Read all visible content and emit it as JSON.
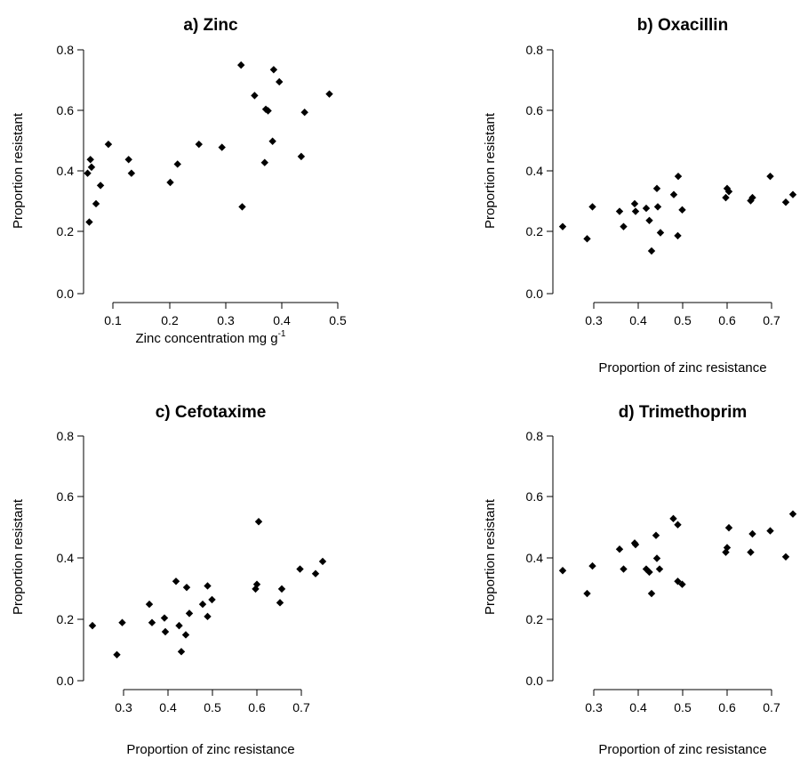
{
  "chart_data": [
    {
      "type": "scatter",
      "title": "a) Zinc",
      "xlabel": "Zinc concentration mg g",
      "xlabel_superscript": "-1",
      "ylabel": "Proportion resistant",
      "xlim": [
        0.05,
        0.5
      ],
      "ylim": [
        0.0,
        0.8
      ],
      "xticks": [
        "0.1",
        "0.2",
        "0.3",
        "0.4",
        "0.5"
      ],
      "yticks": [
        "0.0",
        "0.2",
        "0.4",
        "0.6",
        "0.8"
      ],
      "grid": false,
      "points": [
        {
          "x": 0.055,
          "y": 0.395
        },
        {
          "x": 0.058,
          "y": 0.235
        },
        {
          "x": 0.06,
          "y": 0.44
        },
        {
          "x": 0.062,
          "y": 0.415
        },
        {
          "x": 0.07,
          "y": 0.295
        },
        {
          "x": 0.078,
          "y": 0.355
        },
        {
          "x": 0.092,
          "y": 0.49
        },
        {
          "x": 0.128,
          "y": 0.44
        },
        {
          "x": 0.133,
          "y": 0.395
        },
        {
          "x": 0.202,
          "y": 0.365
        },
        {
          "x": 0.215,
          "y": 0.425
        },
        {
          "x": 0.253,
          "y": 0.49
        },
        {
          "x": 0.294,
          "y": 0.48
        },
        {
          "x": 0.328,
          "y": 0.75
        },
        {
          "x": 0.33,
          "y": 0.285
        },
        {
          "x": 0.352,
          "y": 0.65
        },
        {
          "x": 0.37,
          "y": 0.43
        },
        {
          "x": 0.372,
          "y": 0.605
        },
        {
          "x": 0.376,
          "y": 0.6
        },
        {
          "x": 0.384,
          "y": 0.5
        },
        {
          "x": 0.386,
          "y": 0.735
        },
        {
          "x": 0.396,
          "y": 0.695
        },
        {
          "x": 0.435,
          "y": 0.45
        },
        {
          "x": 0.441,
          "y": 0.595
        },
        {
          "x": 0.485,
          "y": 0.655
        }
      ]
    },
    {
      "type": "scatter",
      "title": "b) Oxacillin",
      "xlabel": "Proportion of zinc resistance",
      "ylabel": "Proportion resistant",
      "xlim": [
        0.2,
        0.75
      ],
      "ylim": [
        0.0,
        0.8
      ],
      "xticks": [
        "0.3",
        "0.4",
        "0.5",
        "0.6",
        "0.7"
      ],
      "yticks": [
        "0.0",
        "0.2",
        "0.4",
        "0.6",
        "0.8"
      ],
      "grid": false,
      "points": [
        {
          "x": 0.23,
          "y": 0.22
        },
        {
          "x": 0.285,
          "y": 0.18
        },
        {
          "x": 0.297,
          "y": 0.285
        },
        {
          "x": 0.358,
          "y": 0.27
        },
        {
          "x": 0.367,
          "y": 0.22
        },
        {
          "x": 0.392,
          "y": 0.295
        },
        {
          "x": 0.394,
          "y": 0.27
        },
        {
          "x": 0.418,
          "y": 0.28
        },
        {
          "x": 0.425,
          "y": 0.24
        },
        {
          "x": 0.43,
          "y": 0.14
        },
        {
          "x": 0.442,
          "y": 0.345
        },
        {
          "x": 0.444,
          "y": 0.285
        },
        {
          "x": 0.45,
          "y": 0.2
        },
        {
          "x": 0.48,
          "y": 0.325
        },
        {
          "x": 0.489,
          "y": 0.19
        },
        {
          "x": 0.49,
          "y": 0.385
        },
        {
          "x": 0.499,
          "y": 0.275
        },
        {
          "x": 0.597,
          "y": 0.315
        },
        {
          "x": 0.6,
          "y": 0.345
        },
        {
          "x": 0.604,
          "y": 0.335
        },
        {
          "x": 0.653,
          "y": 0.305
        },
        {
          "x": 0.657,
          "y": 0.315
        },
        {
          "x": 0.697,
          "y": 0.385
        },
        {
          "x": 0.732,
          "y": 0.3
        },
        {
          "x": 0.748,
          "y": 0.325
        }
      ]
    },
    {
      "type": "scatter",
      "title": "c) Cefotaxime",
      "xlabel": "Proportion of zinc resistance",
      "ylabel": "Proportion resistant",
      "xlim": [
        0.2,
        0.75
      ],
      "ylim": [
        0.0,
        0.8
      ],
      "xticks": [
        "0.3",
        "0.4",
        "0.5",
        "0.6",
        "0.7"
      ],
      "yticks": [
        "0.0",
        "0.2",
        "0.4",
        "0.6",
        "0.8"
      ],
      "grid": false,
      "points": [
        {
          "x": 0.23,
          "y": 0.18
        },
        {
          "x": 0.285,
          "y": 0.085
        },
        {
          "x": 0.297,
          "y": 0.19
        },
        {
          "x": 0.358,
          "y": 0.25
        },
        {
          "x": 0.364,
          "y": 0.19
        },
        {
          "x": 0.392,
          "y": 0.205
        },
        {
          "x": 0.394,
          "y": 0.16
        },
        {
          "x": 0.418,
          "y": 0.325
        },
        {
          "x": 0.425,
          "y": 0.18
        },
        {
          "x": 0.43,
          "y": 0.095
        },
        {
          "x": 0.44,
          "y": 0.15
        },
        {
          "x": 0.442,
          "y": 0.305
        },
        {
          "x": 0.448,
          "y": 0.22
        },
        {
          "x": 0.478,
          "y": 0.25
        },
        {
          "x": 0.489,
          "y": 0.31
        },
        {
          "x": 0.489,
          "y": 0.21
        },
        {
          "x": 0.499,
          "y": 0.265
        },
        {
          "x": 0.597,
          "y": 0.3
        },
        {
          "x": 0.6,
          "y": 0.315
        },
        {
          "x": 0.604,
          "y": 0.52
        },
        {
          "x": 0.652,
          "y": 0.255
        },
        {
          "x": 0.656,
          "y": 0.3
        },
        {
          "x": 0.697,
          "y": 0.365
        },
        {
          "x": 0.732,
          "y": 0.35
        },
        {
          "x": 0.748,
          "y": 0.39
        }
      ]
    },
    {
      "type": "scatter",
      "title": "d) Trimethoprim",
      "xlabel": "Proportion of zinc resistance",
      "ylabel": "Proportion resistant",
      "xlim": [
        0.2,
        0.75
      ],
      "ylim": [
        0.0,
        0.8
      ],
      "xticks": [
        "0.3",
        "0.4",
        "0.5",
        "0.6",
        "0.7"
      ],
      "yticks": [
        "0.0",
        "0.2",
        "0.4",
        "0.6",
        "0.8"
      ],
      "grid": false,
      "points": [
        {
          "x": 0.23,
          "y": 0.36
        },
        {
          "x": 0.285,
          "y": 0.285
        },
        {
          "x": 0.297,
          "y": 0.375
        },
        {
          "x": 0.358,
          "y": 0.43
        },
        {
          "x": 0.367,
          "y": 0.365
        },
        {
          "x": 0.392,
          "y": 0.45
        },
        {
          "x": 0.394,
          "y": 0.445
        },
        {
          "x": 0.418,
          "y": 0.365
        },
        {
          "x": 0.425,
          "y": 0.355
        },
        {
          "x": 0.43,
          "y": 0.285
        },
        {
          "x": 0.44,
          "y": 0.475
        },
        {
          "x": 0.442,
          "y": 0.4
        },
        {
          "x": 0.448,
          "y": 0.365
        },
        {
          "x": 0.479,
          "y": 0.53
        },
        {
          "x": 0.489,
          "y": 0.51
        },
        {
          "x": 0.489,
          "y": 0.325
        },
        {
          "x": 0.499,
          "y": 0.315
        },
        {
          "x": 0.597,
          "y": 0.42
        },
        {
          "x": 0.6,
          "y": 0.435
        },
        {
          "x": 0.604,
          "y": 0.5
        },
        {
          "x": 0.653,
          "y": 0.42
        },
        {
          "x": 0.657,
          "y": 0.48
        },
        {
          "x": 0.697,
          "y": 0.49
        },
        {
          "x": 0.732,
          "y": 0.405
        },
        {
          "x": 0.748,
          "y": 0.545
        }
      ]
    }
  ]
}
